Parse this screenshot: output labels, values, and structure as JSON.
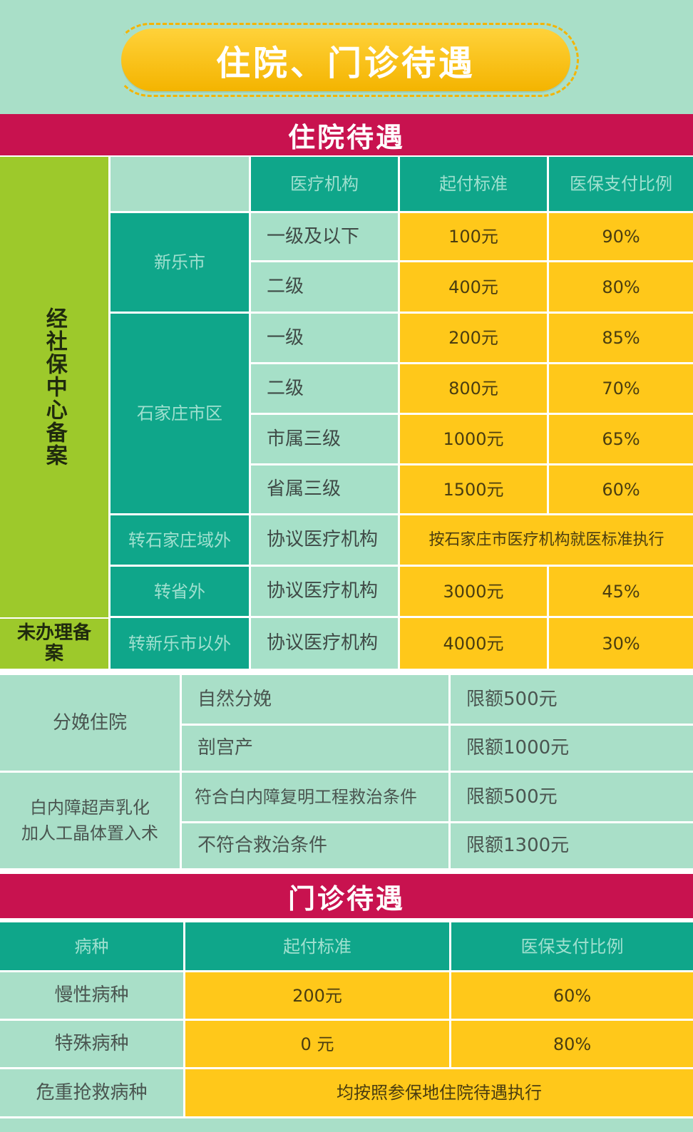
{
  "banner": {
    "title": "住院、门诊待遇"
  },
  "inpatient": {
    "section_title": "住院待遇",
    "side_label_registered": "经社保中心备案",
    "side_label_unregistered": "未办理备案",
    "headers": {
      "institution": "医疗机构",
      "deductible": "起付标准",
      "ratio": "医保支付比例"
    },
    "groups": {
      "xinle": "新乐市",
      "sjz": "石家庄市区",
      "transfer_outside_sjz": "转石家庄域外",
      "transfer_outside_province": "转省外",
      "transfer_outside_xinle": "转新乐市以外"
    },
    "rows": [
      {
        "level": "一级及以下",
        "deductible": "100元",
        "ratio": "90%"
      },
      {
        "level": "二级",
        "deductible": "400元",
        "ratio": "80%"
      },
      {
        "level": "一级",
        "deductible": "200元",
        "ratio": "85%"
      },
      {
        "level": "二级",
        "deductible": "800元",
        "ratio": "70%"
      },
      {
        "level": "市属三级",
        "deductible": "1000元",
        "ratio": "65%"
      },
      {
        "level": "省属三级",
        "deductible": "1500元",
        "ratio": "60%"
      },
      {
        "level": "协议医疗机构",
        "merged": "按石家庄市医疗机构就医标准执行"
      },
      {
        "level": "协议医疗机构",
        "deductible": "3000元",
        "ratio": "45%"
      },
      {
        "level": "协议医疗机构",
        "deductible": "4000元",
        "ratio": "30%"
      }
    ]
  },
  "special": {
    "childbirth": {
      "label": "分娩住院",
      "items": [
        {
          "name": "自然分娩",
          "limit": "限额500元"
        },
        {
          "name": "剖宫产",
          "limit": "限额1000元"
        }
      ]
    },
    "cataract": {
      "label_line1": "白内障超声乳化",
      "label_line2": "加人工晶体置入术",
      "items": [
        {
          "name": "符合白内障复明工程救治条件",
          "limit": "限额500元"
        },
        {
          "name": "不符合救治条件",
          "limit": "限额1300元"
        }
      ]
    }
  },
  "outpatient": {
    "section_title": "门诊待遇",
    "headers": {
      "disease": "病种",
      "deductible": "起付标准",
      "ratio": "医保支付比例"
    },
    "rows": [
      {
        "disease": "慢性病种",
        "deductible": "200元",
        "ratio": "60%"
      },
      {
        "disease": "特殊病种",
        "deductible": "0 元",
        "ratio": "80%"
      },
      {
        "disease": "危重抢救病种",
        "merged": "均按照参保地住院待遇执行"
      }
    ]
  }
}
